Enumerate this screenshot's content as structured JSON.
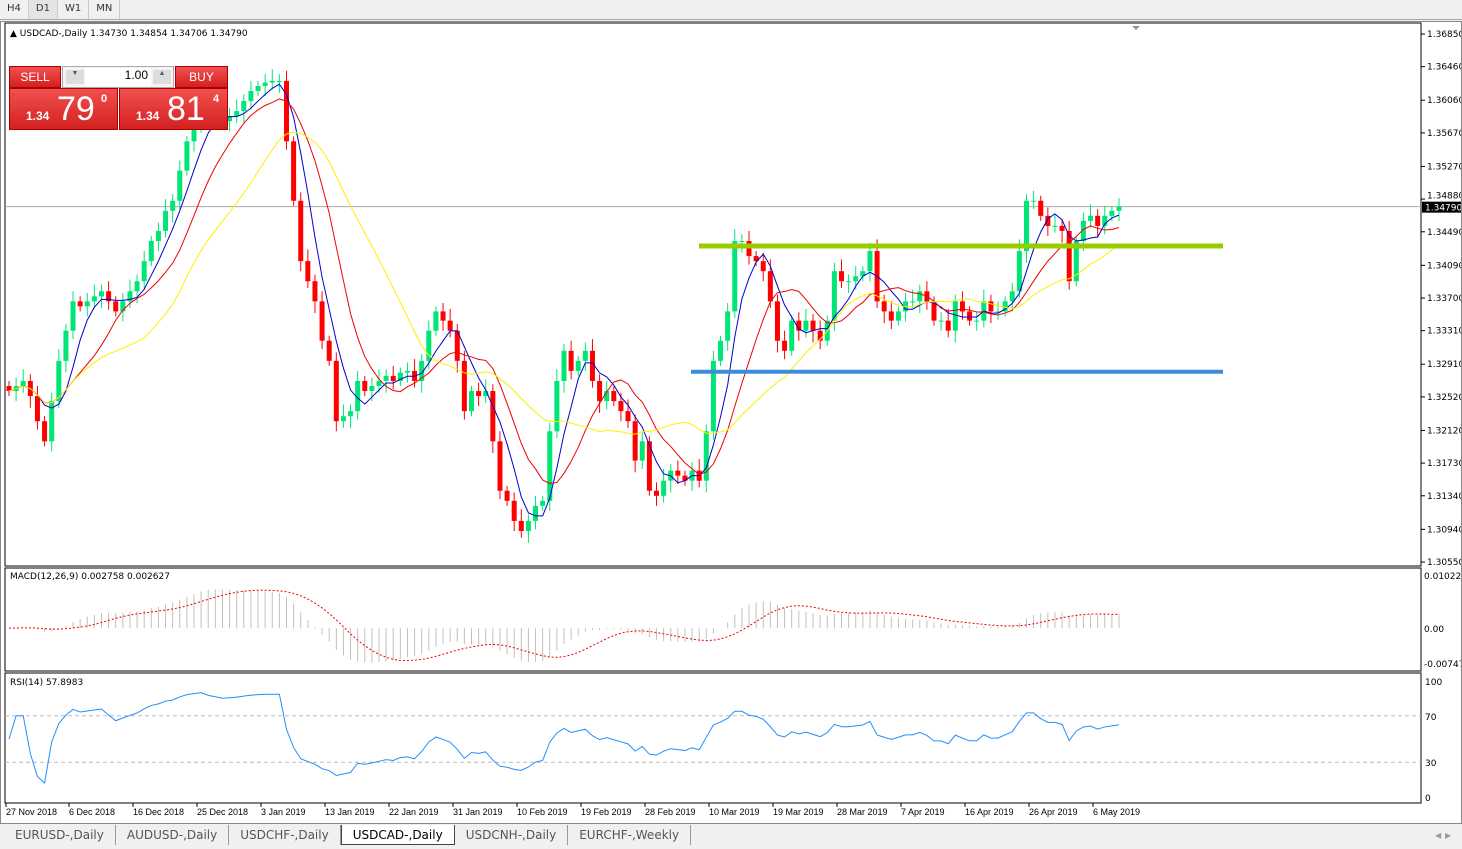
{
  "timeframes": [
    "H4",
    "D1",
    "W1",
    "MN"
  ],
  "active_timeframe": "D1",
  "header": {
    "symbol": "USDCAD-,Daily",
    "ohlc": "1.34730 1.34854 1.34706 1.34790"
  },
  "trade_panel": {
    "sell_label": "SELL",
    "buy_label": "BUY",
    "lot": "1.00",
    "sell_big": "79",
    "sell_prefix": "1.34",
    "sell_sup": "0",
    "buy_big": "81",
    "buy_prefix": "1.34",
    "buy_sup": "4"
  },
  "macd": {
    "label": "MACD(12,26,9) 0.002758 0.002627",
    "ticks": [
      "0.010229",
      "0.00",
      "-0.007477"
    ]
  },
  "rsi": {
    "label": "RSI(14) 57.8983",
    "ticks": [
      "100",
      "70",
      "30",
      "0"
    ]
  },
  "tabs": [
    "EURUSD-,Daily",
    "AUDUSD-,Daily",
    "USDCHF-,Daily",
    "USDCAD-,Daily",
    "USDCNH-,Daily",
    "EURCHF-,Weekly"
  ],
  "active_tab": "USDCAD-,Daily",
  "colors": {
    "bull": "#00e676",
    "bear": "#ff0000",
    "ma_fast": "#0000cc",
    "ma_mid": "#ee0000",
    "ma_slow": "#ffee00",
    "resistance": "#99cc00",
    "support": "#3a8ed8"
  },
  "chart_data": {
    "type": "candlestick",
    "title": "USDCAD-,Daily",
    "ylim": [
      1.3055,
      1.3685
    ],
    "price_ticks": [
      "1.36850",
      "1.36460",
      "1.36060",
      "1.35670",
      "1.35270",
      "1.34880",
      "1.34490",
      "1.34090",
      "1.33700",
      "1.33310",
      "1.32910",
      "1.32520",
      "1.32120",
      "1.31730",
      "1.31340",
      "1.30940",
      "1.30550"
    ],
    "current_price": "1.34790",
    "x_ticks": [
      "27 Nov 2018",
      "6 Dec 2018",
      "16 Dec 2018",
      "25 Dec 2018",
      "3 Jan 2019",
      "13 Jan 2019",
      "22 Jan 2019",
      "31 Jan 2019",
      "10 Feb 2019",
      "19 Feb 2019",
      "28 Feb 2019",
      "10 Mar 2019",
      "19 Mar 2019",
      "28 Mar 2019",
      "7 Apr 2019",
      "16 Apr 2019",
      "26 Apr 2019",
      "6 May 2019"
    ],
    "levels": {
      "resistance": 1.3432,
      "support": 1.3282
    },
    "closes": [
      1.3259,
      1.3265,
      1.3271,
      1.3253,
      1.3223,
      1.3199,
      1.3247,
      1.3295,
      1.3331,
      1.3366,
      1.336,
      1.3366,
      1.3372,
      1.3378,
      1.3366,
      1.3354,
      1.3366,
      1.3378,
      1.339,
      1.3414,
      1.3438,
      1.345,
      1.3474,
      1.3486,
      1.3522,
      1.3557,
      1.3575,
      1.3593,
      1.3587,
      1.3584,
      1.3581,
      1.3587,
      1.3593,
      1.3605,
      1.3617,
      1.3623,
      1.3627,
      1.3629,
      1.3629,
      1.3557,
      1.3486,
      1.3414,
      1.339,
      1.3366,
      1.3319,
      1.3295,
      1.3223,
      1.3229,
      1.3235,
      1.3271,
      1.3259,
      1.3265,
      1.3271,
      1.3277,
      1.3271,
      1.3281,
      1.3283,
      1.3271,
      1.3295,
      1.3331,
      1.3354,
      1.3343,
      1.3331,
      1.3295,
      1.3235,
      1.3259,
      1.3253,
      1.3259,
      1.3199,
      1.314,
      1.3128,
      1.3104,
      1.3092,
      1.3104,
      1.3122,
      1.3128,
      1.3211,
      1.3271,
      1.3307,
      1.3283,
      1.3295,
      1.3307,
      1.3271,
      1.3247,
      1.3259,
      1.3247,
      1.3235,
      1.3223,
      1.3176,
      1.3199,
      1.314,
      1.3134,
      1.3152,
      1.3164,
      1.3158,
      1.3152,
      1.3164,
      1.3152,
      1.3211,
      1.3295,
      1.3319,
      1.3354,
      1.3438,
      1.3438,
      1.342,
      1.3414,
      1.3402,
      1.3366,
      1.3319,
      1.3307,
      1.3343,
      1.3331,
      1.3343,
      1.3331,
      1.3319,
      1.3343,
      1.3402,
      1.339,
      1.339,
      1.3396,
      1.3402,
      1.3426,
      1.3366,
      1.3354,
      1.3343,
      1.3354,
      1.3366,
      1.3366,
      1.3378,
      1.3366,
      1.3343,
      1.3343,
      1.3331,
      1.3366,
      1.3354,
      1.3343,
      1.3343,
      1.3366,
      1.3354,
      1.3354,
      1.3366,
      1.3378,
      1.3426,
      1.3486,
      1.3486,
      1.3468,
      1.3456,
      1.3456,
      1.345,
      1.339,
      1.3438,
      1.3462,
      1.3468,
      1.3456,
      1.3468,
      1.3474,
      1.3479
    ]
  }
}
